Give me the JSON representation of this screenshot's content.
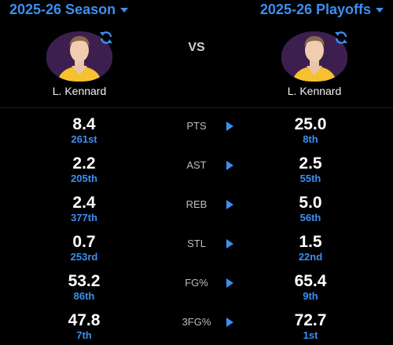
{
  "left": {
    "season": "2025-26 Season",
    "player_name": "L. Kennard"
  },
  "right": {
    "season": "2025-26 Playoffs",
    "player_name": "L. Kennard"
  },
  "vs_label": "VS",
  "colors": {
    "accent": "#3b8ff0",
    "background": "#000000",
    "avatar_bg": "#3d1f4f",
    "jersey": "#f5c12e"
  },
  "stats": [
    {
      "label": "PTS",
      "left_value": "8.4",
      "left_rank": "261st",
      "right_value": "25.0",
      "right_rank": "8th"
    },
    {
      "label": "AST",
      "left_value": "2.2",
      "left_rank": "205th",
      "right_value": "2.5",
      "right_rank": "55th"
    },
    {
      "label": "REB",
      "left_value": "2.4",
      "left_rank": "377th",
      "right_value": "5.0",
      "right_rank": "56th"
    },
    {
      "label": "STL",
      "left_value": "0.7",
      "left_rank": "253rd",
      "right_value": "1.5",
      "right_rank": "22nd"
    },
    {
      "label": "FG%",
      "left_value": "53.2",
      "left_rank": "86th",
      "right_value": "65.4",
      "right_rank": "9th"
    },
    {
      "label": "3FG%",
      "left_value": "47.8",
      "left_rank": "7th",
      "right_value": "72.7",
      "right_rank": "1st"
    }
  ]
}
